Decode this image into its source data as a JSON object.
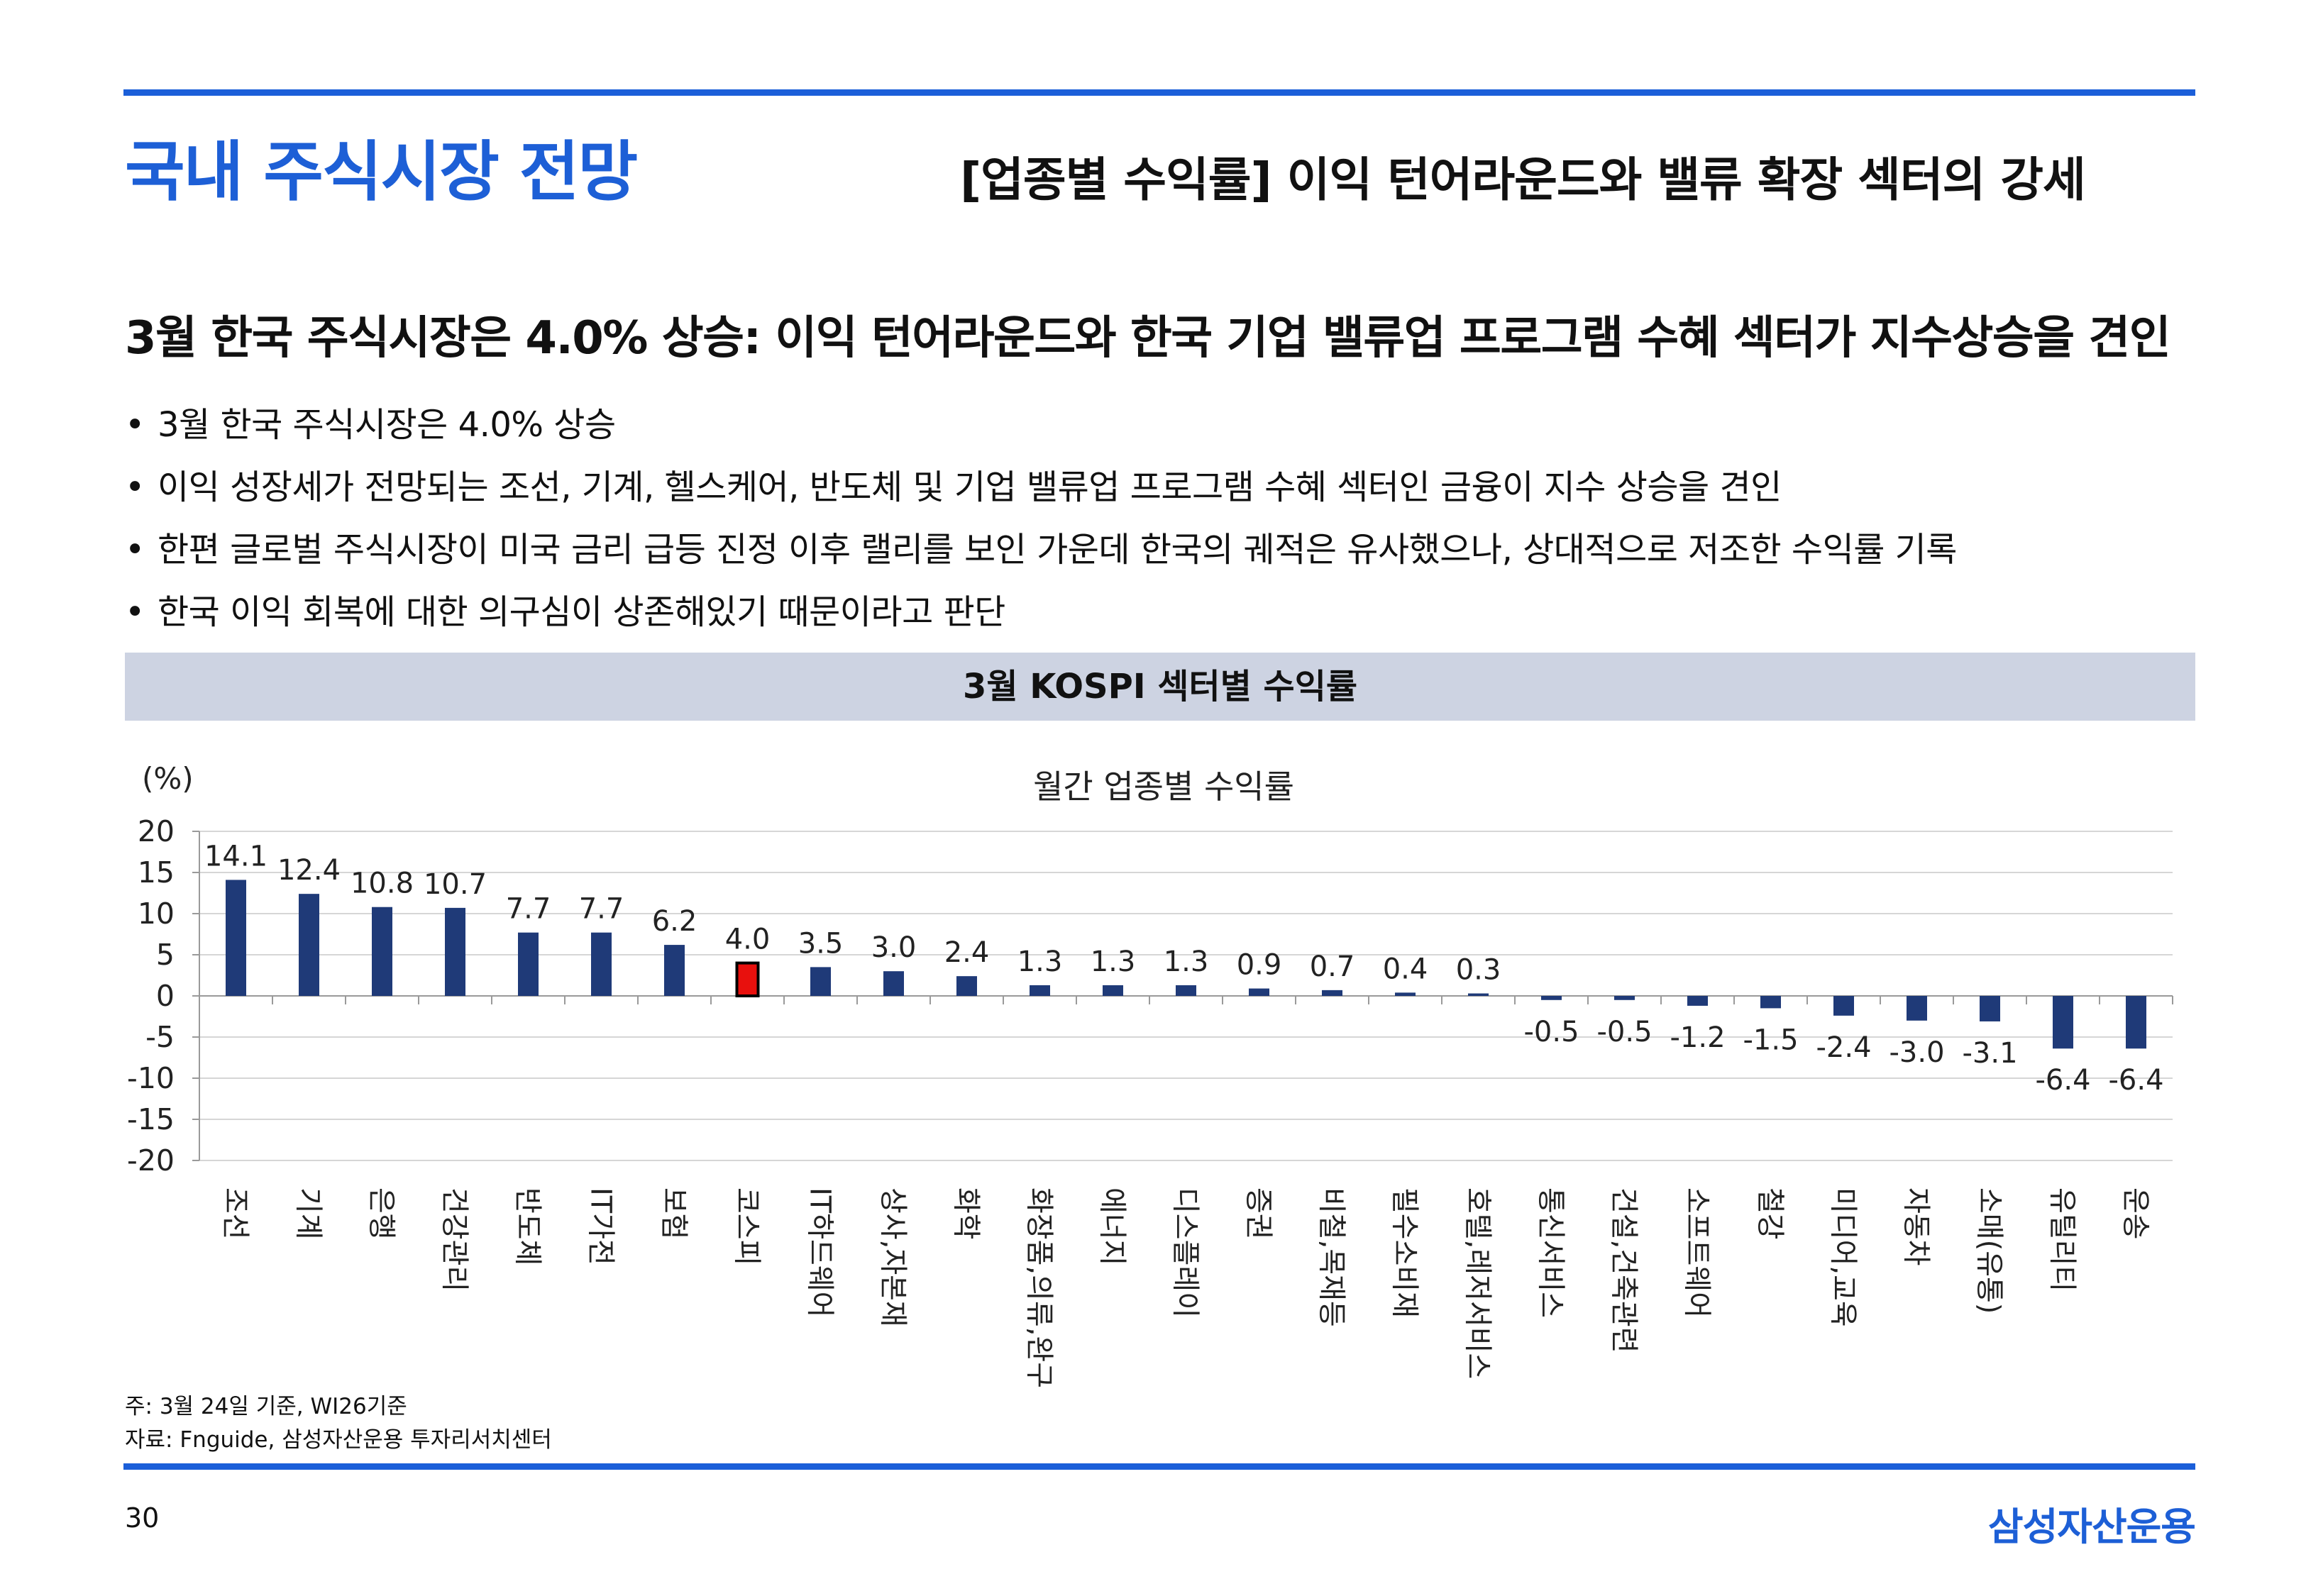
{
  "header": {
    "section_title": "국내 주식시장 전망",
    "page_subtitle": "[업종별 수익률] 이익 턴어라운드와 밸류 확장 섹터의 강세"
  },
  "headline": "3월 한국 주식시장은 4.0% 상승: 이익 턴어라운드와 한국 기업 밸류업 프로그램 수혜 섹터가 지수상승을 견인",
  "bullets": [
    "3월 한국 주식시장은 4.0% 상승",
    "이익 성장세가 전망되는 조선, 기계, 헬스케어, 반도체 및 기업 밸류업 프로그램 수혜 섹터인 금융이 지수 상승을 견인",
    "한편 글로벌 주식시장이 미국 금리 급등 진정 이후 랠리를 보인 가운데 한국의 궤적은 유사했으나, 상대적으로 저조한 수익률 기록",
    "한국 이익 회복에 대한 의구심이 상존해있기 때문이라고 판단"
  ],
  "chart_header": "3월 KOSPI 섹터별 수익률",
  "chart_data": {
    "type": "bar",
    "title": "월간 업종별 수익률",
    "ylabel": "(%)",
    "xlabel": "",
    "ylim": [
      -20,
      20
    ],
    "yticks": [
      20,
      15,
      10,
      5,
      0,
      -5,
      -10,
      -15,
      -20
    ],
    "grid": true,
    "categories": [
      "조선",
      "기계",
      "은행",
      "건강관리",
      "반도체",
      "IT가전",
      "보험",
      "코스피",
      "IT하드웨어",
      "상사,자본재",
      "화학",
      "화장품,의류,완구",
      "에너지",
      "디스플레이",
      "증권",
      "비철,목재등",
      "필수소비재",
      "호텔,레저서비스",
      "통신서비스",
      "건설,건축관련",
      "소프트웨어",
      "철강",
      "미디어,교육",
      "자동차",
      "소매(유통)",
      "유틸리티",
      "운송"
    ],
    "values": [
      14.1,
      12.4,
      10.8,
      10.7,
      7.7,
      7.7,
      6.2,
      4.0,
      3.5,
      3.0,
      2.4,
      1.3,
      1.3,
      1.3,
      0.9,
      0.7,
      0.4,
      0.3,
      -0.5,
      -0.5,
      -1.2,
      -1.5,
      -2.4,
      -3.0,
      -3.1,
      -6.4,
      -6.4
    ],
    "data_labels": [
      "14.1",
      "12.4",
      "10.8",
      "10.7",
      "7.7",
      "7.7",
      "6.2",
      "4.0",
      "3.5",
      "3.0",
      "2.4",
      "1.3",
      "1.3",
      "1.3",
      "0.9",
      "0.7",
      "0.4",
      "0.3",
      "-0.5",
      "-0.5",
      "-1.2",
      "-1.5",
      "-2.4",
      "-3.0",
      "-3.1",
      "-6.4",
      "-6.4"
    ],
    "highlight_category": "코스피",
    "bar_color": "#1f3a78",
    "highlight_color": "#e8100d"
  },
  "notes": [
    "주: 3월 24일 기준, WI26기준",
    "자료: Fnguide, 삼성자산운용 투자리서치센터"
  ],
  "footer": {
    "page_number": "30",
    "brand": "삼성자산운용"
  }
}
